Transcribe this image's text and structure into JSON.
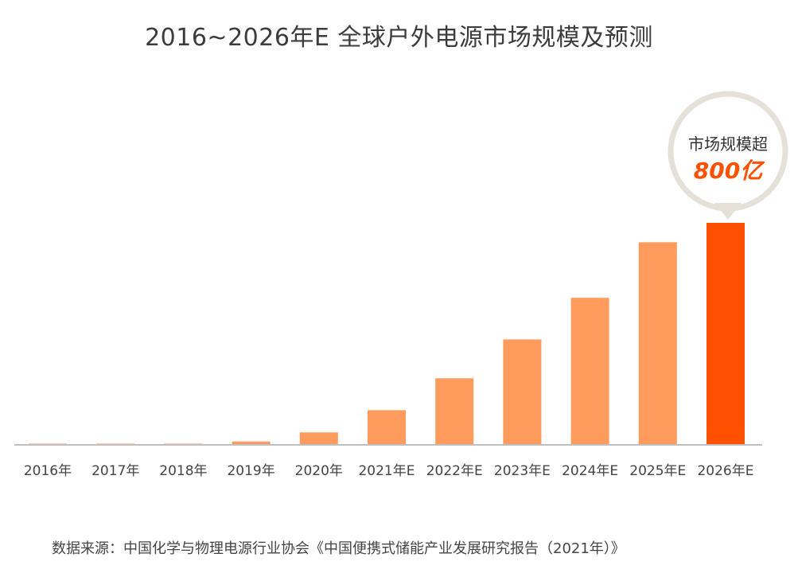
{
  "chart_data": {
    "type": "bar",
    "title": "2016~2026年E 全球户外电源市场规模及预测",
    "categories": [
      "2016年",
      "2017年",
      "2018年",
      "2019年",
      "2020年",
      "2021年E",
      "2022年E",
      "2023年E",
      "2024年E",
      "2025年E",
      "2026年E"
    ],
    "values": [
      0.5,
      1,
      3,
      12,
      45,
      125,
      240,
      380,
      530,
      730,
      800
    ],
    "ylim": [
      0,
      820
    ],
    "xlabel": "",
    "ylabel": "",
    "highlight_index": 10,
    "colors": {
      "bar": "#FF9B5C",
      "highlight": "#FF5000",
      "axis": "#BFBFBF"
    },
    "callout": {
      "line1": "市场规模超",
      "line2": "800亿"
    }
  },
  "source": "数据来源：中国化学与物理电源行业协会《中国便携式储能产业发展研究报告（2021年）》"
}
